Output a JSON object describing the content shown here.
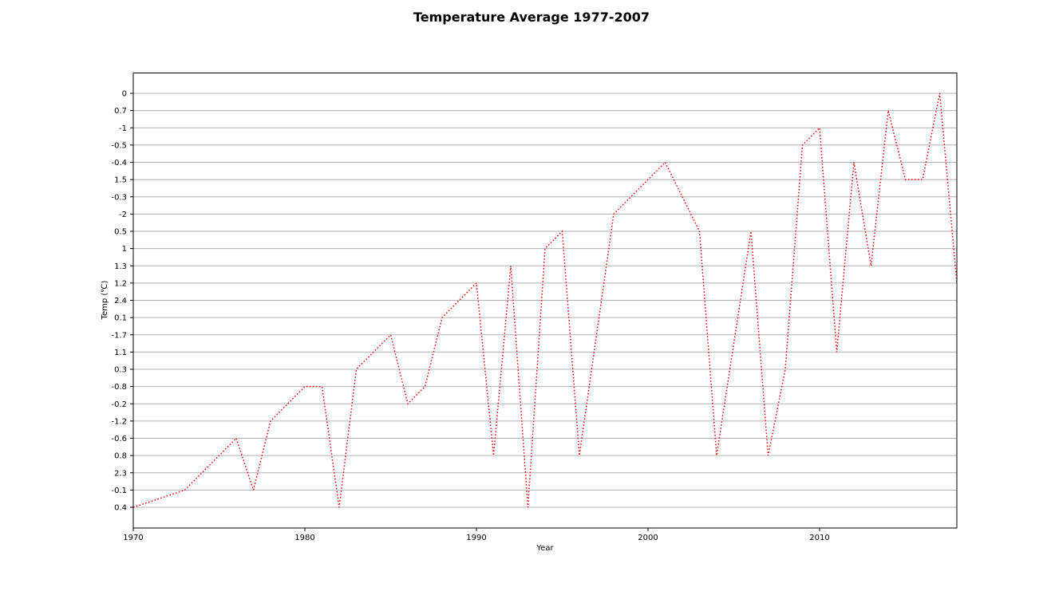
{
  "chart_data": {
    "type": "line",
    "title": "Temperature Average 1977-2007",
    "xlabel": "Year",
    "ylabel": "Temp (℃)",
    "xlim": [
      1970,
      2018
    ],
    "x_ticks": [
      "1970",
      "1980",
      "1990",
      "2000",
      "2010"
    ],
    "y_categories": [
      "0.4",
      "-0.1",
      "2.3",
      "0.8",
      "-0.6",
      "-1.2",
      "-0.2",
      "-0.8",
      "0.3",
      "1.1",
      "-1.7",
      "0.1",
      "2.4",
      "1.2",
      "1.3",
      "1",
      "0.5",
      "-2",
      "-0.3",
      "1.5",
      "-0.4",
      "-0.5",
      "-1",
      "0.7",
      "0"
    ],
    "grid": "horizontal",
    "series": [
      {
        "color": "#ff0000",
        "linestyle": "dotted",
        "x": [
          1970,
          1973,
          1976,
          1977,
          1978,
          1980,
          1981,
          1982,
          1983,
          1985,
          1986,
          1987,
          1988,
          1990,
          1991,
          1992,
          1993,
          1994,
          1995,
          1996,
          1998,
          2001,
          2003,
          2004,
          2006,
          2007,
          2008,
          2009,
          2010,
          2011,
          2012,
          2013,
          2014,
          2015,
          2016,
          2017,
          2018
        ],
        "y": [
          "0.4",
          "-0.1",
          "-0.6",
          "-0.1",
          "-1.2",
          "-0.8",
          "-0.8",
          "0.4",
          "0.3",
          "-1.7",
          "-0.2",
          "-0.8",
          "0.1",
          "1.2",
          "0.8",
          "1.3",
          "0.4",
          "1",
          "0.5",
          "0.8",
          "-2",
          "-0.4",
          "0.5",
          "0.8",
          "0.5",
          "0.8",
          "0.3",
          "-0.5",
          "-1",
          "1.1",
          "-0.4",
          "1.3",
          "0.7",
          "1.5",
          "1.5",
          "0",
          "1.2"
        ]
      }
    ]
  }
}
